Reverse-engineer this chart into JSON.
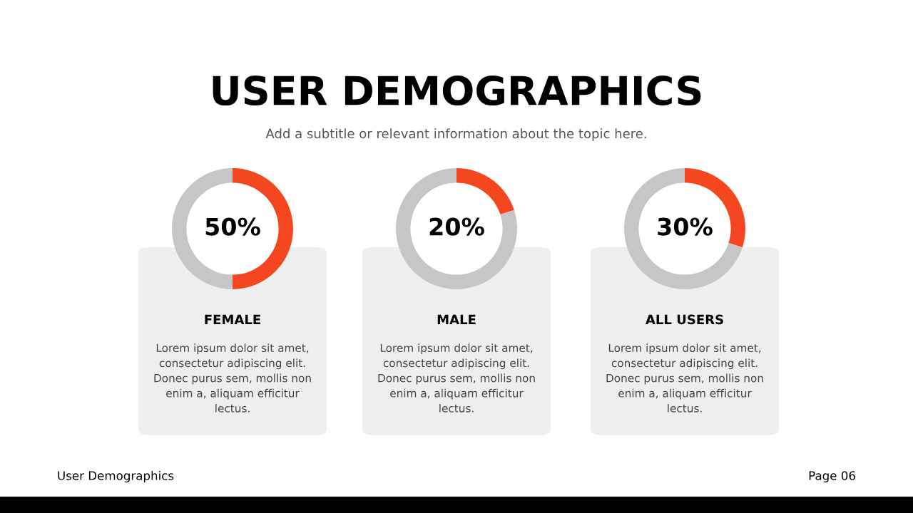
{
  "chart_data": [
    {
      "type": "other",
      "title": "USER DEMOGRAPHICS",
      "subtitle": "Add a subtitle or relevant information about the topic here.",
      "annotations": [
        "User Demographics",
        "Page 06"
      ]
    },
    {
      "type": "donut",
      "title": "FEMALE",
      "categories": [
        null,
        null
      ],
      "values": [
        50,
        50
      ],
      "colors": [
        "#f4471f",
        "#c6c6c6"
      ],
      "value_labels": [
        "50%",
        null
      ],
      "annotations": [
        "Lorem ipsum dolor sit amet,\nconsectetur adipiscing elit.\nDonec purus sem, mollis non\nenim a, aliquam efficitur\nlectus."
      ]
    },
    {
      "type": "donut",
      "title": "MALE",
      "categories": [
        null,
        null
      ],
      "values": [
        20,
        80
      ],
      "colors": [
        "#f4471f",
        "#c6c6c6"
      ],
      "value_labels": [
        "20%",
        null
      ],
      "annotations": [
        "Lorem ipsum dolor sit amet,\nconsectetur adipiscing elit.\nDonec purus sem, mollis non\nenim a, aliquam efficitur\nlectus."
      ]
    },
    {
      "type": "donut",
      "title": "ALL USERS",
      "categories": [
        null,
        null
      ],
      "values": [
        30,
        70
      ],
      "colors": [
        "#f4471f",
        "#c6c6c6"
      ],
      "value_labels": [
        "30%",
        null
      ],
      "annotations": [
        "Lorem ipsum dolor sit amet,\nconsectetur adipiscing elit.\nDonec purus sem, mollis non\nenim a, aliquam efficitur\nlectus."
      ]
    }
  ]
}
